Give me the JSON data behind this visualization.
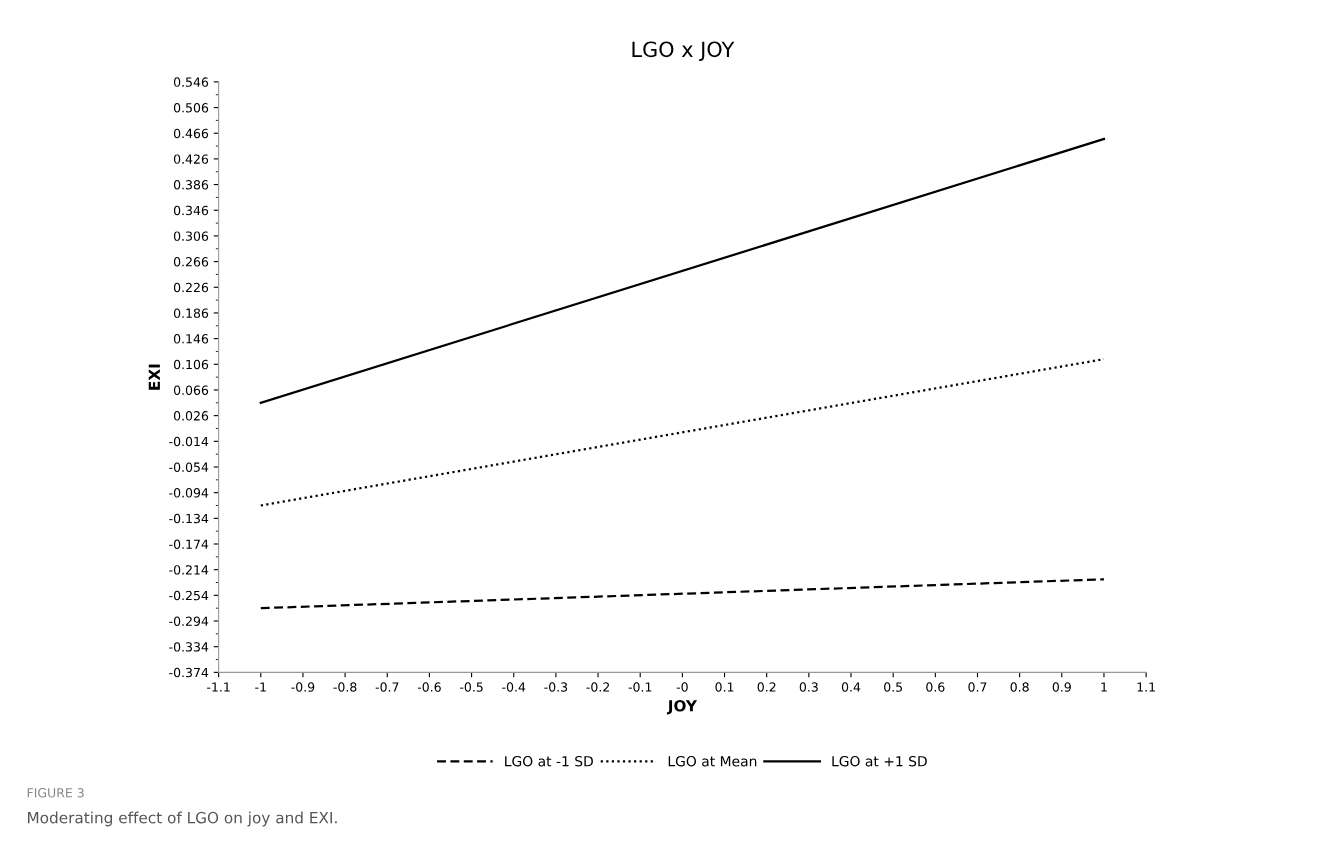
{
  "chart_data": {
    "type": "line",
    "title": "LGO x JOY",
    "xlabel": "JOY",
    "ylabel": "EXI",
    "x": [
      -1,
      1
    ],
    "series": [
      {
        "name": "LGO at -1 SD",
        "color": "#000000",
        "values": [
          -0.274,
          -0.229
        ],
        "line_style": "dashed"
      },
      {
        "name": "LGO at Mean",
        "color": "#000000",
        "values": [
          -0.114,
          0.114
        ],
        "line_style": "dotted"
      },
      {
        "name": "LGO at +1 SD",
        "color": "#000000",
        "values": [
          0.046,
          0.457
        ],
        "line_style": "solid"
      }
    ],
    "xlim": [
      -1.1,
      1.1
    ],
    "xticks": [
      -1.1,
      -1,
      -0.9,
      -0.8,
      -0.7,
      -0.6,
      -0.5,
      -0.4,
      -0.3,
      -0.2,
      -0.1,
      {
        "value": 0,
        "label": "-0"
      },
      0.1,
      0.2,
      0.3,
      0.4,
      0.5,
      0.6,
      0.7,
      0.8,
      0.9,
      1,
      1.1
    ],
    "ylim": [
      -0.374,
      0.546
    ],
    "yticks": [
      -0.374,
      -0.334,
      -0.294,
      -0.254,
      -0.214,
      -0.174,
      -0.134,
      -0.094,
      -0.054,
      -0.014,
      0.026,
      0.066,
      0.106,
      0.146,
      0.186,
      0.226,
      0.266,
      0.306,
      0.346,
      0.386,
      0.426,
      0.466,
      0.506,
      0.546
    ],
    "grid": false,
    "legend": "bottom",
    "marker": "none",
    "annotations": [
      "FIGURE 3",
      "Moderating effect of LGO on joy and EXI."
    ]
  }
}
